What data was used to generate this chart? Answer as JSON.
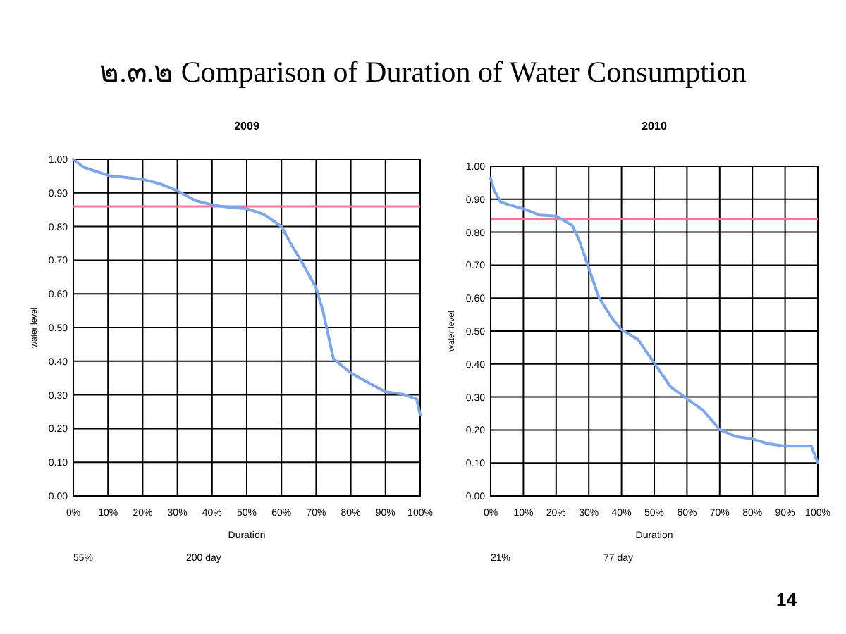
{
  "chart_data": [
    {
      "type": "other",
      "title": "๒.๓.๒ Comparison of Duration of Water Consumption",
      "annotations": [
        "14"
      ]
    },
    {
      "type": "line",
      "title": "2009",
      "xlabel": "Duration",
      "ylabel": "water level",
      "x": [
        0,
        3,
        10,
        20,
        25,
        30,
        35,
        40,
        45,
        50,
        55,
        60,
        63,
        67,
        70,
        72,
        75,
        80,
        85,
        90,
        95,
        99,
        100
      ],
      "series": [
        {
          "color": "#7fa7e8",
          "values": [
            1.0,
            0.976,
            0.952,
            0.94,
            0.927,
            0.906,
            0.878,
            0.864,
            0.857,
            0.853,
            0.836,
            0.8,
            0.744,
            0.674,
            0.618,
            0.548,
            0.407,
            0.365,
            0.337,
            0.309,
            0.302,
            0.288,
            0.24
          ]
        }
      ],
      "xlim": [
        0,
        100
      ],
      "ylim": [
        0,
        1
      ],
      "xticks": [
        {
          "value": 0,
          "label": "0%"
        },
        {
          "value": 10,
          "label": "10%"
        },
        {
          "value": 20,
          "label": "20%"
        },
        {
          "value": 30,
          "label": "30%"
        },
        {
          "value": 40,
          "label": "40%"
        },
        {
          "value": 50,
          "label": "50%"
        },
        {
          "value": 60,
          "label": "60%"
        },
        {
          "value": 70,
          "label": "70%"
        },
        {
          "value": 80,
          "label": "80%"
        },
        {
          "value": 90,
          "label": "90%"
        },
        {
          "value": 100,
          "label": "100%"
        }
      ],
      "yticks": [
        {
          "value": 0,
          "label": "0.00"
        },
        {
          "value": 0.1,
          "label": "0.10"
        },
        {
          "value": 0.2,
          "label": "0.20"
        },
        {
          "value": 0.3,
          "label": "0.30"
        },
        {
          "value": 0.4,
          "label": "0.40"
        },
        {
          "value": 0.5,
          "label": "0.50"
        },
        {
          "value": 0.6,
          "label": "0.60"
        },
        {
          "value": 0.7,
          "label": "0.70"
        },
        {
          "value": 0.8,
          "label": "0.80"
        },
        {
          "value": 0.9,
          "label": "0.90"
        },
        {
          "value": 1,
          "label": "1.00"
        }
      ],
      "grid": true,
      "ref_lines": [
        {
          "axis": "y",
          "value": 0.86,
          "color": "#f07a9a"
        }
      ],
      "annotations": [
        "55%",
        "200 day"
      ]
    },
    {
      "type": "line",
      "title": "2010",
      "xlabel": "Duration",
      "ylabel": "water level",
      "x": [
        0,
        1,
        3,
        5,
        10,
        15,
        20,
        25,
        27,
        30,
        33,
        37,
        40,
        45,
        50,
        55,
        60,
        65,
        70,
        75,
        80,
        85,
        90,
        98,
        100
      ],
      "series": [
        {
          "color": "#7fa7e8",
          "values": [
            0.964,
            0.928,
            0.892,
            0.885,
            0.871,
            0.852,
            0.849,
            0.82,
            0.777,
            0.691,
            0.604,
            0.54,
            0.504,
            0.475,
            0.403,
            0.331,
            0.295,
            0.259,
            0.201,
            0.18,
            0.173,
            0.158,
            0.151,
            0.151,
            0.101
          ]
        }
      ],
      "xlim": [
        0,
        100
      ],
      "ylim": [
        0,
        1
      ],
      "xticks": [
        {
          "value": 0,
          "label": "0%"
        },
        {
          "value": 10,
          "label": "10%"
        },
        {
          "value": 20,
          "label": "20%"
        },
        {
          "value": 30,
          "label": "30%"
        },
        {
          "value": 40,
          "label": "40%"
        },
        {
          "value": 50,
          "label": "50%"
        },
        {
          "value": 60,
          "label": "60%"
        },
        {
          "value": 70,
          "label": "70%"
        },
        {
          "value": 80,
          "label": "80%"
        },
        {
          "value": 90,
          "label": "90%"
        },
        {
          "value": 100,
          "label": "100%"
        }
      ],
      "yticks": [
        {
          "value": 0,
          "label": "0.00"
        },
        {
          "value": 0.1,
          "label": "0.10"
        },
        {
          "value": 0.2,
          "label": "0.20"
        },
        {
          "value": 0.3,
          "label": "0.30"
        },
        {
          "value": 0.4,
          "label": "0.40"
        },
        {
          "value": 0.5,
          "label": "0.50"
        },
        {
          "value": 0.6,
          "label": "0.60"
        },
        {
          "value": 0.7,
          "label": "0.70"
        },
        {
          "value": 0.8,
          "label": "0.80"
        },
        {
          "value": 0.9,
          "label": "0.90"
        },
        {
          "value": 1,
          "label": "1.00"
        }
      ],
      "grid": true,
      "ref_lines": [
        {
          "axis": "y",
          "value": 0.84,
          "color": "#f07a9a"
        }
      ],
      "annotations": [
        "21%",
        "77 day"
      ]
    }
  ]
}
